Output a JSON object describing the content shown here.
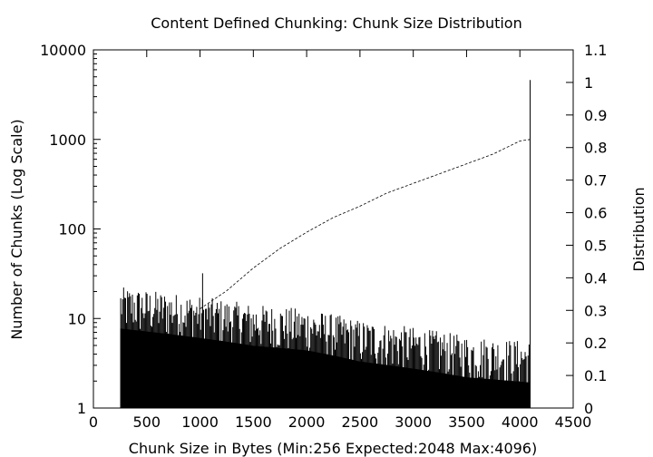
{
  "chart_data": {
    "type": "bar",
    "title": "Content Defined Chunking: Chunk Size Distribution",
    "xlabel": "Chunk Size in Bytes (Min:256 Expected:2048 Max:4096)",
    "ylabel": "Number of Chunks (Log Scale)",
    "y2label": "Distribution",
    "xlim": [
      0,
      4500
    ],
    "ylim": [
      1,
      10000
    ],
    "yscale": "log",
    "y2lim": [
      0,
      1.1
    ],
    "xticks": [
      "0",
      "500",
      "1000",
      "1500",
      "2000",
      "2500",
      "3000",
      "3500",
      "4000",
      "4500"
    ],
    "yticks": [
      "1",
      "10",
      "100",
      "1000",
      "10000"
    ],
    "y2ticks": [
      "0",
      "0.1",
      "0.2",
      "0.3",
      "0.4",
      "0.5",
      "0.6",
      "0.7",
      "0.8",
      "0.9",
      "1",
      "1.1"
    ],
    "grid": false,
    "legend": "none",
    "histogram": {
      "name": "Number of Chunks",
      "bin_width": 1,
      "x_start": 256,
      "x_end": 4095,
      "approx_count_envelope": {
        "x": [
          256,
          500,
          1000,
          1500,
          2000,
          2500,
          3000,
          3500,
          4095
        ],
        "y": [
          14,
          13,
          11,
          9,
          8,
          6,
          5,
          4,
          3.5
        ]
      },
      "spikes": [
        {
          "x": 1024,
          "y": 32
        },
        {
          "x": 4096,
          "y": 4600
        }
      ]
    },
    "series": [
      {
        "name": "Distribution",
        "axis": "y2",
        "style": "dashed",
        "x": [
          1000,
          1250,
          1500,
          1750,
          2000,
          2250,
          2500,
          2750,
          3000,
          3250,
          3500,
          3750,
          4000,
          4096
        ],
        "y": [
          0.305,
          0.36,
          0.43,
          0.49,
          0.54,
          0.585,
          0.62,
          0.66,
          0.69,
          0.72,
          0.75,
          0.78,
          0.82,
          0.825
        ]
      }
    ]
  }
}
